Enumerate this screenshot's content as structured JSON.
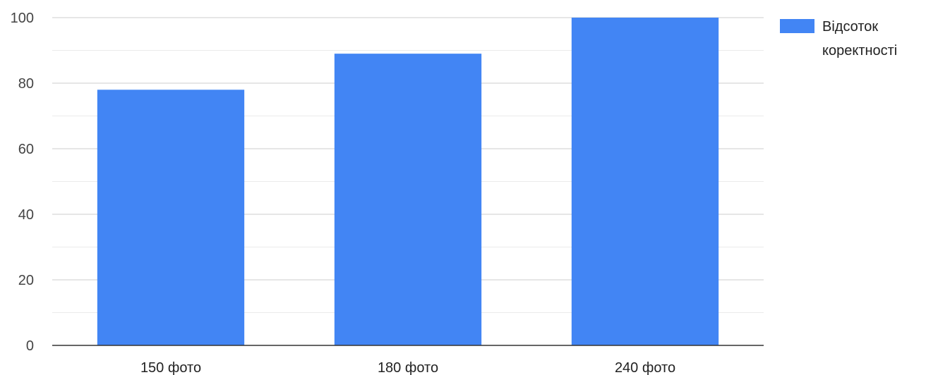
{
  "chart_data": {
    "type": "bar",
    "categories": [
      "150 фото",
      "180 фото",
      "240 фото"
    ],
    "series": [
      {
        "name": "Відсоток коректності",
        "values": [
          78,
          89,
          100
        ],
        "color": "#4285f4"
      }
    ],
    "ylim": [
      0,
      100
    ],
    "yticks": [
      0,
      20,
      40,
      60,
      80,
      100
    ],
    "grid": true,
    "minor_gridlines": true,
    "legend": {
      "position": "right",
      "lines": [
        "Відсоток",
        "коректності"
      ]
    },
    "colors": {
      "bar": "#4285f4",
      "gridline": "#cccccc",
      "minor_gridline": "#ebebeb",
      "baseline": "#333333"
    }
  }
}
